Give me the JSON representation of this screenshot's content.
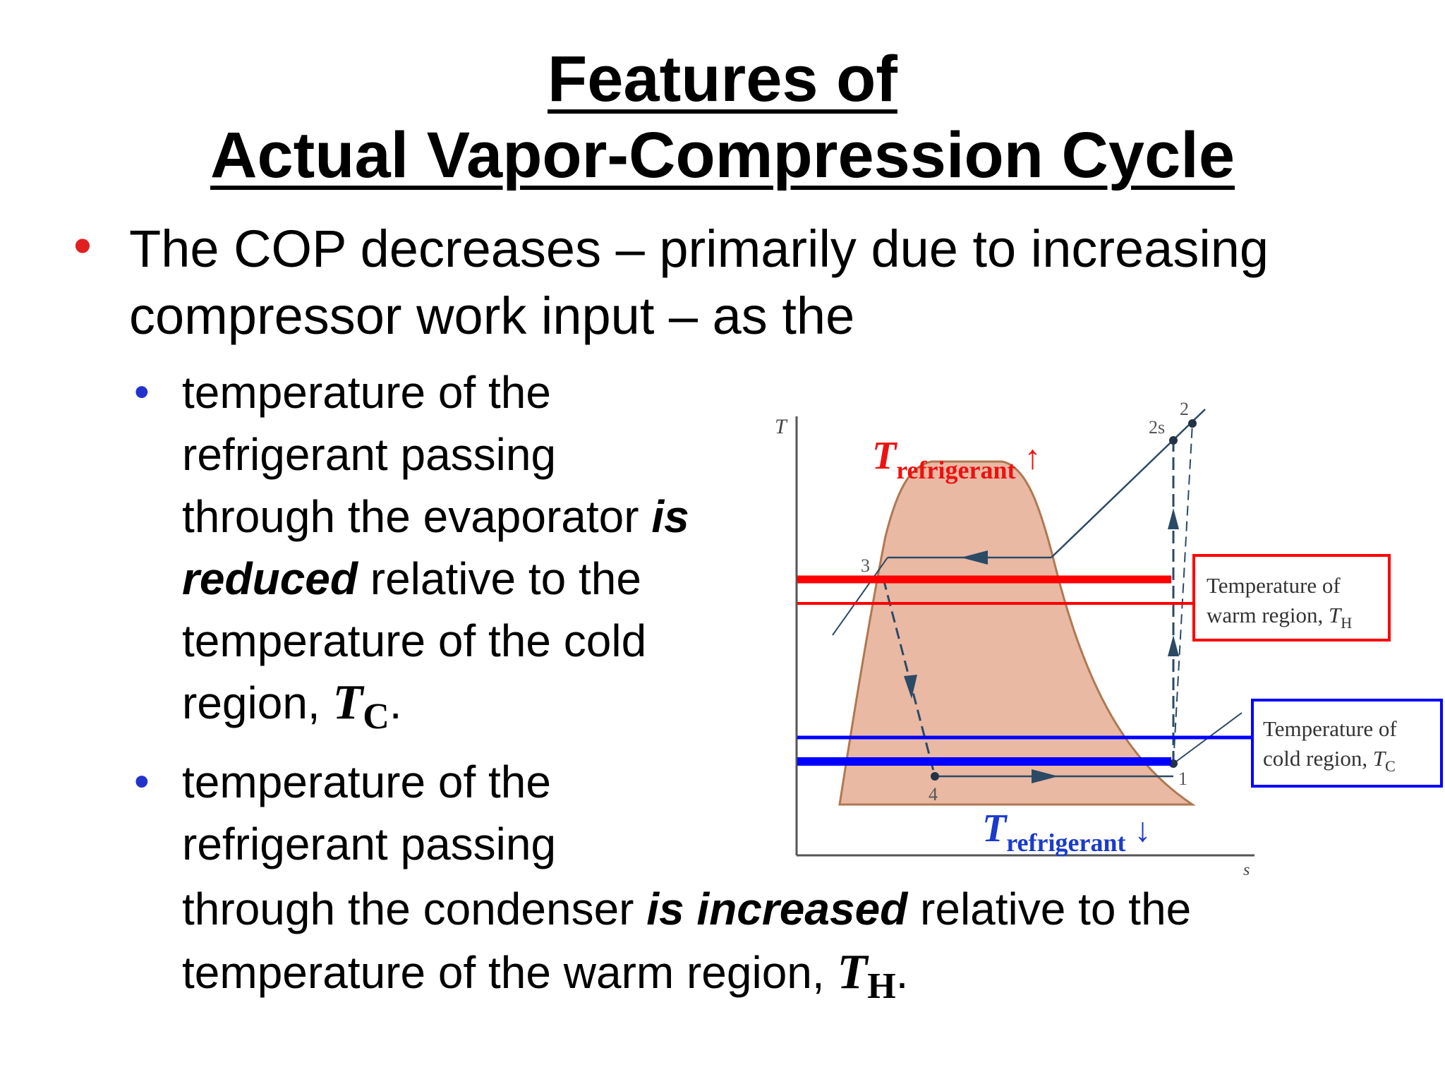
{
  "title": {
    "line1": "Features of",
    "line2": "Actual Vapor-Compression Cycle"
  },
  "main_bullet": {
    "line1": "The COP decreases – primarily due to increasing",
    "line2": "compressor work input – as the"
  },
  "sub_bullet_1": {
    "line1": "temperature of the",
    "line2": "refrigerant passing",
    "line3_plain": "through the evaporator ",
    "line3_emph": "is",
    "line4_emph": "reduced",
    "line4_plain": " relative to the",
    "line5": "temperature of the cold",
    "line6_plain": "region, ",
    "symbol": "T",
    "subscript": "C",
    "period": "."
  },
  "sub_bullet_2": {
    "line1": "temperature of the",
    "line2": "refrigerant passing",
    "line3_plain1": "through the condenser ",
    "line3_emph": "is increased",
    "line3_plain2": " relative to the",
    "line4_plain": "temperature of the warm region, ",
    "symbol": "T",
    "subscript": "H",
    "period": "."
  },
  "diagram": {
    "axis_y": "T",
    "axis_x": "s",
    "state_labels": [
      "1",
      "2",
      "2s",
      "3",
      "4"
    ],
    "upper_annotation": {
      "symbol": "T",
      "subscript": "refrigerant",
      "arrow": "↑"
    },
    "lower_annotation": {
      "symbol": "T",
      "subscript": "refrigerant",
      "arrow": "↓"
    },
    "warm_box": {
      "line1": "Temperature of",
      "line2": "warm region, ",
      "symbol": "T",
      "subscript": "H"
    },
    "cold_box": {
      "line1": "Temperature of",
      "line2": "cold region, ",
      "symbol": "T",
      "subscript": "C"
    },
    "colors": {
      "dome_fill": "#e9b9a4",
      "dome_edge": "#b07850",
      "warm": "#ff0000",
      "cold": "#0000ff",
      "cycle": "#2b4a66"
    }
  }
}
